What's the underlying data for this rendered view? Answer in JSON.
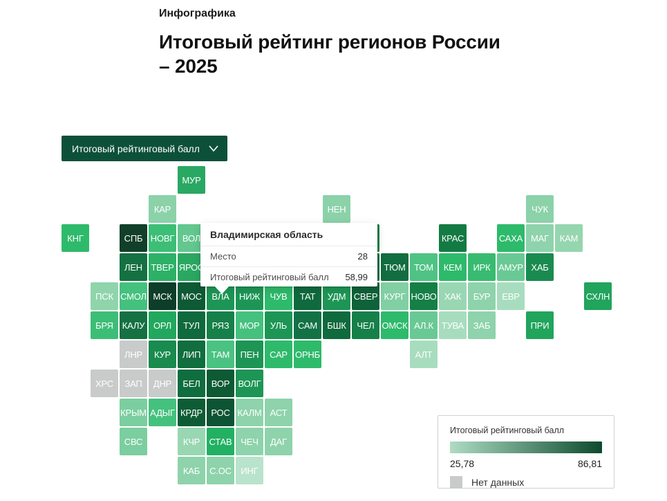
{
  "header": {
    "eyebrow": "Инфографика",
    "title_line1": "Итоговый рейтинг регионов России",
    "title_line2": "– 2025"
  },
  "filter": {
    "label": "Итоговый рейтинговый балл",
    "bg_color": "#0d503a"
  },
  "tooltip": {
    "title": "Владимирская область",
    "rows": [
      {
        "label": "Место",
        "value": "28"
      },
      {
        "label": "Итоговый рейтинговый балл",
        "value": "58,99"
      }
    ]
  },
  "legend": {
    "title": "Итоговый рейтинговый балл",
    "min": "25,78",
    "max": "86,81",
    "gradient_from": "#aedcc3",
    "gradient_to": "#0c4a2e",
    "no_data_label": "Нет данных",
    "no_data_color": "#c8cbca"
  },
  "chart_data": {
    "type": "heatmap",
    "subtype": "tile-grid-map",
    "title": "Итоговый рейтинг регионов России – 2025",
    "metric": "Итоговый рейтинговый балл",
    "value_range": [
      25.78,
      86.81
    ],
    "legend_position": "bottom-right",
    "no_data_color": "#c8cbca",
    "selected_region": {
      "name": "Владимирская область",
      "place": 28,
      "score": 58.99,
      "tile": "ВЛА"
    },
    "tiles": [
      {
        "label": "МУР",
        "row": 1,
        "col": 5,
        "color": "#29a863"
      },
      {
        "label": "КАР",
        "row": 2,
        "col": 4,
        "color": "#8bd2a9"
      },
      {
        "label": "НЕН",
        "row": 2,
        "col": 10,
        "color": "#8bd2a9"
      },
      {
        "label": "ЧУК",
        "row": 2,
        "col": 17,
        "color": "#8bd2a9"
      },
      {
        "label": "КНГ",
        "row": 3,
        "col": 1,
        "color": "#2eba6b"
      },
      {
        "label": "СПБ",
        "row": 3,
        "col": 3,
        "color": "#123f29"
      },
      {
        "label": "НОВГ",
        "row": 3,
        "col": 4,
        "color": "#3dbe76"
      },
      {
        "label": "ВОЛ",
        "row": 3,
        "col": 5,
        "color": "#63c78f"
      },
      {
        "label": "",
        "row": 3,
        "col": 11,
        "color": "#15804a"
      },
      {
        "label": "КРАС",
        "row": 3,
        "col": 14,
        "color": "#147a43"
      },
      {
        "label": "САХА",
        "row": 3,
        "col": 16,
        "color": "#2eba6b"
      },
      {
        "label": "МАГ",
        "row": 3,
        "col": 17,
        "color": "#8ed3ab"
      },
      {
        "label": "КАМ",
        "row": 3,
        "col": 18,
        "color": "#95d6af"
      },
      {
        "label": "ЛЕН",
        "row": 4,
        "col": 3,
        "color": "#157142"
      },
      {
        "label": "ТВЕР",
        "row": 4,
        "col": 4,
        "color": "#2cb167"
      },
      {
        "label": "ЯРОС",
        "row": 4,
        "col": 5,
        "color": "#2aa861"
      },
      {
        "label": "",
        "row": 4,
        "col": 11,
        "color": "#126e40"
      },
      {
        "label": "ТЮМ",
        "row": 4,
        "col": 12,
        "color": "#126e40"
      },
      {
        "label": "ТОМ",
        "row": 4,
        "col": 13,
        "color": "#4fc384"
      },
      {
        "label": "КЕМ",
        "row": 4,
        "col": 14,
        "color": "#2eba6b"
      },
      {
        "label": "ИРК",
        "row": 4,
        "col": 15,
        "color": "#38bb70"
      },
      {
        "label": "АМУР",
        "row": 4,
        "col": 16,
        "color": "#69c994"
      },
      {
        "label": "ХАБ",
        "row": 4,
        "col": 17,
        "color": "#1a8b4f"
      },
      {
        "label": "ПСК",
        "row": 5,
        "col": 2,
        "color": "#90d4ac"
      },
      {
        "label": "СМОЛ",
        "row": 5,
        "col": 3,
        "color": "#45c17e"
      },
      {
        "label": "МСК",
        "row": 5,
        "col": 4,
        "color": "#0d3e29"
      },
      {
        "label": "МОС",
        "row": 5,
        "col": 5,
        "color": "#0e5a35"
      },
      {
        "label": "ВЛА",
        "row": 5,
        "col": 6,
        "color": "#1d9655"
      },
      {
        "label": "НИЖ",
        "row": 5,
        "col": 7,
        "color": "#1d9655"
      },
      {
        "label": "ЧУВ",
        "row": 5,
        "col": 8,
        "color": "#2eba6b"
      },
      {
        "label": "ТАТ",
        "row": 5,
        "col": 9,
        "color": "#0f6a3e"
      },
      {
        "label": "УДМ",
        "row": 5,
        "col": 10,
        "color": "#1d9655"
      },
      {
        "label": "СВЕР",
        "row": 5,
        "col": 11,
        "color": "#0f6239"
      },
      {
        "label": "КУРГ",
        "row": 5,
        "col": 12,
        "color": "#82cfa4"
      },
      {
        "label": "НОВО",
        "row": 5,
        "col": 13,
        "color": "#157f46"
      },
      {
        "label": "ХАК",
        "row": 5,
        "col": 14,
        "color": "#99d7b3"
      },
      {
        "label": "БУР",
        "row": 5,
        "col": 15,
        "color": "#8ed3ab"
      },
      {
        "label": "ЕВР",
        "row": 5,
        "col": 16,
        "color": "#a7ddbe"
      },
      {
        "label": "СХЛН",
        "row": 5,
        "col": 19,
        "color": "#21a45c"
      },
      {
        "label": "БРЯ",
        "row": 6,
        "col": 2,
        "color": "#3dbe76"
      },
      {
        "label": "КАЛУ",
        "row": 6,
        "col": 3,
        "color": "#157142"
      },
      {
        "label": "ОРЛ",
        "row": 6,
        "col": 4,
        "color": "#22a85e"
      },
      {
        "label": "ТУЛ",
        "row": 6,
        "col": 5,
        "color": "#0f6a3e"
      },
      {
        "label": "РЯЗ",
        "row": 6,
        "col": 6,
        "color": "#168049"
      },
      {
        "label": "МОР",
        "row": 6,
        "col": 7,
        "color": "#45c17e"
      },
      {
        "label": "УЛЬ",
        "row": 6,
        "col": 8,
        "color": "#1d9655"
      },
      {
        "label": "САМ",
        "row": 6,
        "col": 9,
        "color": "#127246"
      },
      {
        "label": "БШК",
        "row": 6,
        "col": 10,
        "color": "#0f6a3e"
      },
      {
        "label": "ЧЕЛ",
        "row": 6,
        "col": 11,
        "color": "#168049"
      },
      {
        "label": "ОМСК",
        "row": 6,
        "col": 12,
        "color": "#2eba6b"
      },
      {
        "label": "АЛ.К",
        "row": 6,
        "col": 13,
        "color": "#69c994"
      },
      {
        "label": "ТУВА",
        "row": 6,
        "col": 14,
        "color": "#a7ddbe"
      },
      {
        "label": "ЗАБ",
        "row": 6,
        "col": 15,
        "color": "#8ed3ab"
      },
      {
        "label": "ПРИ",
        "row": 6,
        "col": 17,
        "color": "#21a45c"
      },
      {
        "label": "ЛНР",
        "row": 7,
        "col": 3,
        "color": "#c8cbca"
      },
      {
        "label": "КУР",
        "row": 7,
        "col": 4,
        "color": "#1a8b4f"
      },
      {
        "label": "ЛИП",
        "row": 7,
        "col": 5,
        "color": "#116e3e"
      },
      {
        "label": "ТАМ",
        "row": 7,
        "col": 6,
        "color": "#4ac281"
      },
      {
        "label": "ПЕН",
        "row": 7,
        "col": 7,
        "color": "#1d9655"
      },
      {
        "label": "САР",
        "row": 7,
        "col": 8,
        "color": "#2eba6b"
      },
      {
        "label": "ОРНБ",
        "row": 7,
        "col": 9,
        "color": "#2eba6b"
      },
      {
        "label": "АЛТ",
        "row": 7,
        "col": 13,
        "color": "#a7ddbe"
      },
      {
        "label": "ХРС",
        "row": 8,
        "col": 2,
        "color": "#c8cbca"
      },
      {
        "label": "ЗАП",
        "row": 8,
        "col": 3,
        "color": "#c8cbca"
      },
      {
        "label": "ДНР",
        "row": 8,
        "col": 4,
        "color": "#c8cbca"
      },
      {
        "label": "БЕЛ",
        "row": 8,
        "col": 5,
        "color": "#0f6e40"
      },
      {
        "label": "ВОР",
        "row": 8,
        "col": 6,
        "color": "#0d5a35"
      },
      {
        "label": "ВОЛГ",
        "row": 8,
        "col": 7,
        "color": "#1d9655"
      },
      {
        "label": "КРЫМ",
        "row": 9,
        "col": 3,
        "color": "#7bce9f"
      },
      {
        "label": "АДЫГ",
        "row": 9,
        "col": 4,
        "color": "#45c17e"
      },
      {
        "label": "КРДР",
        "row": 9,
        "col": 5,
        "color": "#0d5c35"
      },
      {
        "label": "РОС",
        "row": 9,
        "col": 6,
        "color": "#0d5434"
      },
      {
        "label": "КАЛМ",
        "row": 9,
        "col": 7,
        "color": "#8ed3ab"
      },
      {
        "label": "АСТ",
        "row": 9,
        "col": 8,
        "color": "#8ed3ab"
      },
      {
        "label": "СВС",
        "row": 10,
        "col": 3,
        "color": "#7bce9f"
      },
      {
        "label": "КЧР",
        "row": 10,
        "col": 5,
        "color": "#99d7b3"
      },
      {
        "label": "СТАВ",
        "row": 10,
        "col": 6,
        "color": "#22b163"
      },
      {
        "label": "ЧЕЧ",
        "row": 10,
        "col": 7,
        "color": "#8ed3ab"
      },
      {
        "label": "ДАГ",
        "row": 10,
        "col": 8,
        "color": "#8ed3ab"
      },
      {
        "label": "КАБ",
        "row": 11,
        "col": 5,
        "color": "#8ed3ab"
      },
      {
        "label": "С.ОС",
        "row": 11,
        "col": 6,
        "color": "#8ed3ab"
      },
      {
        "label": "ИНГ",
        "row": 11,
        "col": 7,
        "color": "#b9e3cc"
      }
    ]
  }
}
